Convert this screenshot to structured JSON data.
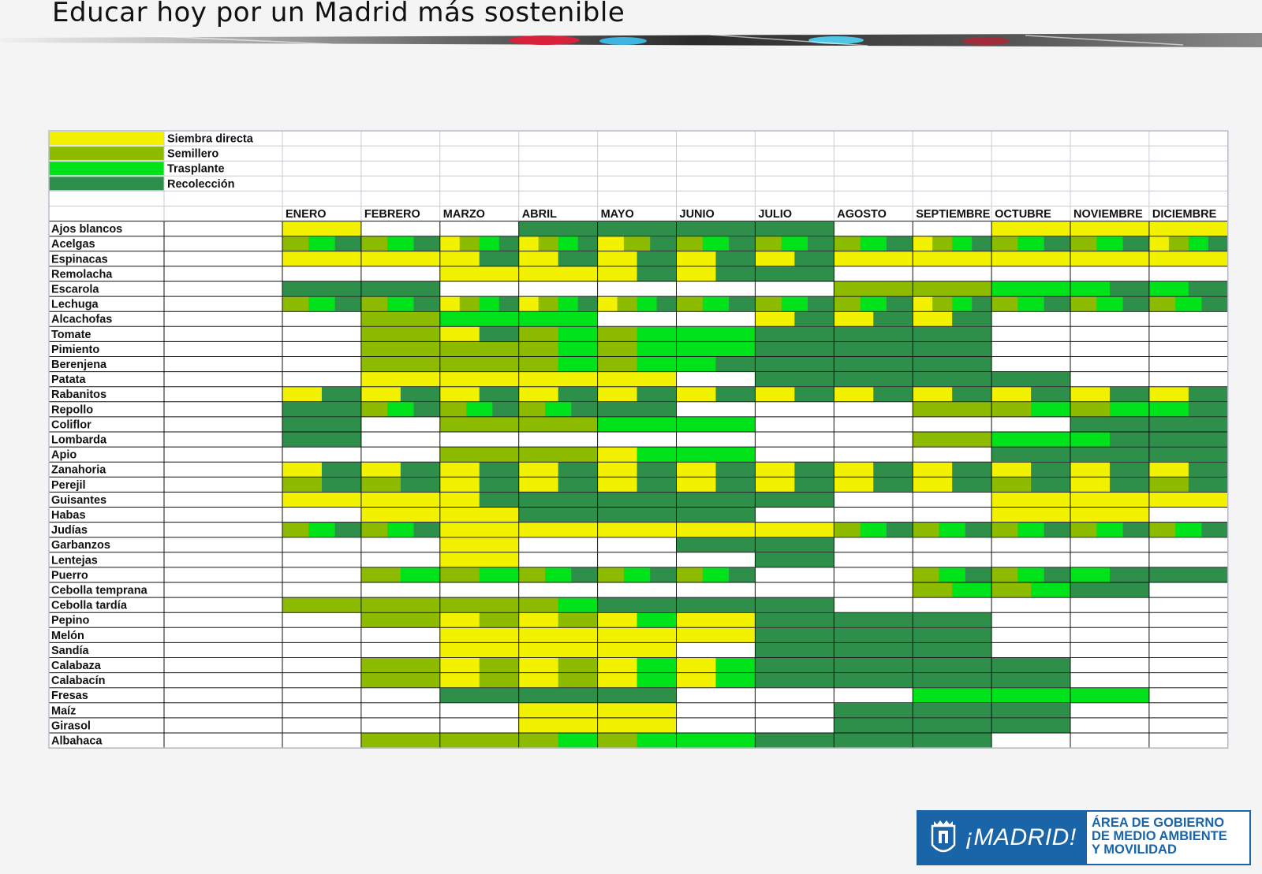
{
  "header": {
    "title": "Educar hoy por un Madrid más sostenible"
  },
  "footer": {
    "brand": "¡MADRID!",
    "dept_line1": "ÁREA DE GOBIERNO",
    "dept_line2": "DE MEDIO AMBIENTE",
    "dept_line3": "Y MOVILIDAD"
  },
  "colors": {
    "S": "#f2f200",
    "M": "#8dbb00",
    "T": "#00e31a",
    "R": "#2e8f4b",
    "E": "#ffffff"
  },
  "chart_data": {
    "type": "table",
    "title": "",
    "legend": [
      {
        "code": "S",
        "label": "Siembra directa"
      },
      {
        "code": "M",
        "label": "Semillero"
      },
      {
        "code": "T",
        "label": "Trasplante"
      },
      {
        "code": "R",
        "label": "Recolección"
      }
    ],
    "months": [
      "ENERO",
      "FEBRERO",
      "MARZO",
      "ABRIL",
      "MAYO",
      "JUNIO",
      "JULIO",
      "AGOSTO",
      "SEPTIEMBRE",
      "OCTUBRE",
      "NOVIEMBRE",
      "DICIEMBRE"
    ],
    "rows": [
      {
        "crop": "Ajos blancos",
        "months": [
          "S",
          "E",
          "E",
          "R",
          "R",
          "R",
          "R",
          "E",
          "E",
          "S",
          "S",
          "S"
        ]
      },
      {
        "crop": "Acelgas",
        "months": [
          "MTR",
          "MTR",
          "SMTR",
          "SMTR",
          "SMR",
          "MTR",
          "MTR",
          "MTR",
          "SMTR",
          "MTR",
          "MTR",
          "SMTR"
        ]
      },
      {
        "crop": "Espinacas",
        "months": [
          "S",
          "S",
          "SR",
          "SR",
          "SR",
          "SR",
          "SR",
          "S",
          "S",
          "S",
          "S",
          "S"
        ]
      },
      {
        "crop": "Remolacha",
        "months": [
          "E",
          "E",
          "S",
          "S",
          "SR",
          "SR",
          "R",
          "E",
          "E",
          "E",
          "E",
          "E"
        ]
      },
      {
        "crop": "Escarola",
        "months": [
          "R",
          "R",
          "E",
          "E",
          "E",
          "E",
          "E",
          "M",
          "M",
          "T",
          "TR",
          "TR"
        ]
      },
      {
        "crop": "Lechuga",
        "months": [
          "MTR",
          "MTR",
          "SMTR",
          "SMTR",
          "SMTR",
          "MTR",
          "MTR",
          "MTR",
          "SMTR",
          "MTR",
          "MTR",
          "MTR"
        ]
      },
      {
        "crop": "Alcachofas",
        "months": [
          "E",
          "M",
          "T",
          "T",
          "E",
          "E",
          "SR",
          "SR",
          "SR",
          "E",
          "E",
          "E"
        ]
      },
      {
        "crop": "Tomate",
        "months": [
          "E",
          "M",
          "SR",
          "MT",
          "MT",
          "T",
          "R",
          "R",
          "R",
          "E",
          "E",
          "E"
        ]
      },
      {
        "crop": "Pimiento",
        "months": [
          "E",
          "M",
          "M",
          "MT",
          "MT",
          "T",
          "R",
          "R",
          "R",
          "E",
          "E",
          "E"
        ]
      },
      {
        "crop": "Berenjena",
        "months": [
          "E",
          "M",
          "M",
          "MT",
          "MT",
          "TR",
          "R",
          "R",
          "R",
          "E",
          "E",
          "E"
        ]
      },
      {
        "crop": "Patata",
        "months": [
          "E",
          "S",
          "S",
          "S",
          "S",
          "E",
          "R",
          "R",
          "R",
          "R",
          "E",
          "E"
        ]
      },
      {
        "crop": "Rabanitos",
        "months": [
          "SR",
          "SR",
          "SR",
          "SR",
          "SR",
          "SR",
          "SR",
          "SR",
          "SR",
          "SR",
          "SR",
          "SR"
        ]
      },
      {
        "crop": "Repollo",
        "months": [
          "R",
          "MTR",
          "MTR",
          "MTR",
          "R",
          "E",
          "E",
          "E",
          "M",
          "MT",
          "MT",
          "TR"
        ]
      },
      {
        "crop": "Coliflor",
        "months": [
          "R",
          "E",
          "M",
          "M",
          "T",
          "T",
          "E",
          "E",
          "E",
          "E",
          "R",
          "R"
        ]
      },
      {
        "crop": "Lombarda",
        "months": [
          "R",
          "E",
          "E",
          "E",
          "E",
          "E",
          "E",
          "E",
          "M",
          "T",
          "TR",
          "R"
        ]
      },
      {
        "crop": "Apio",
        "months": [
          "E",
          "E",
          "M",
          "M",
          "ST",
          "T",
          "E",
          "E",
          "E",
          "R",
          "R",
          "R"
        ]
      },
      {
        "crop": "Zanahoria",
        "months": [
          "SR",
          "SR",
          "SR",
          "SR",
          "SR",
          "SR",
          "SR",
          "SR",
          "SR",
          "SR",
          "SR",
          "SR"
        ]
      },
      {
        "crop": "Perejil",
        "months": [
          "MR",
          "MR",
          "SR",
          "SR",
          "SR",
          "SR",
          "SR",
          "SR",
          "SR",
          "MR",
          "SR",
          "MR"
        ]
      },
      {
        "crop": "Guisantes",
        "months": [
          "S",
          "S",
          "SR",
          "R",
          "R",
          "R",
          "R",
          "E",
          "E",
          "S",
          "S",
          "S"
        ]
      },
      {
        "crop": "Habas",
        "months": [
          "E",
          "S",
          "S",
          "R",
          "R",
          "R",
          "E",
          "E",
          "E",
          "S",
          "S",
          "E"
        ]
      },
      {
        "crop": "Judías",
        "months": [
          "MTR",
          "MTR",
          "S",
          "S",
          "S",
          "S",
          "S",
          "MTR",
          "MTR",
          "MTR",
          "MTR",
          "MTR"
        ]
      },
      {
        "crop": "Garbanzos",
        "months": [
          "E",
          "E",
          "S",
          "E",
          "E",
          "R",
          "R",
          "E",
          "E",
          "E",
          "E",
          "E"
        ]
      },
      {
        "crop": "Lentejas",
        "months": [
          "E",
          "E",
          "S",
          "E",
          "E",
          "E",
          "R",
          "E",
          "E",
          "E",
          "E",
          "E"
        ]
      },
      {
        "crop": "Puerro",
        "months": [
          "E",
          "MT",
          "MT",
          "MTR",
          "MTR",
          "MTR",
          "E",
          "E",
          "MTR",
          "MTR",
          "TR",
          "R"
        ]
      },
      {
        "crop": "Cebolla temprana",
        "months": [
          "E",
          "E",
          "E",
          "E",
          "E",
          "E",
          "E",
          "E",
          "MT",
          "MT",
          "R",
          "E"
        ]
      },
      {
        "crop": "Cebolla tardía",
        "months": [
          "M",
          "M",
          "M",
          "MT",
          "R",
          "R",
          "R",
          "E",
          "E",
          "E",
          "E",
          "E"
        ]
      },
      {
        "crop": "Pepino",
        "months": [
          "E",
          "M",
          "SM",
          "SM",
          "ST",
          "S",
          "R",
          "R",
          "R",
          "E",
          "E",
          "E"
        ]
      },
      {
        "crop": "Melón",
        "months": [
          "E",
          "E",
          "S",
          "S",
          "S",
          "S",
          "R",
          "R",
          "R",
          "E",
          "E",
          "E"
        ]
      },
      {
        "crop": "Sandía",
        "months": [
          "E",
          "E",
          "S",
          "S",
          "S",
          "E",
          "R",
          "R",
          "R",
          "E",
          "E",
          "E"
        ]
      },
      {
        "crop": "Calabaza",
        "months": [
          "E",
          "M",
          "SM",
          "SM",
          "ST",
          "ST",
          "R",
          "R",
          "R",
          "R",
          "E",
          "E"
        ]
      },
      {
        "crop": "Calabacín",
        "months": [
          "E",
          "M",
          "SM",
          "SM",
          "ST",
          "ST",
          "R",
          "R",
          "R",
          "R",
          "E",
          "E"
        ]
      },
      {
        "crop": "Fresas",
        "months": [
          "E",
          "E",
          "R",
          "R",
          "R",
          "E",
          "E",
          "E",
          "T",
          "T",
          "T",
          "E"
        ]
      },
      {
        "crop": "Maíz",
        "months": [
          "E",
          "E",
          "E",
          "S",
          "S",
          "E",
          "E",
          "R",
          "R",
          "R",
          "E",
          "E"
        ]
      },
      {
        "crop": "Girasol",
        "months": [
          "E",
          "E",
          "E",
          "S",
          "S",
          "E",
          "E",
          "R",
          "R",
          "R",
          "E",
          "E"
        ]
      },
      {
        "crop": "Albahaca",
        "months": [
          "E",
          "M",
          "M",
          "MT",
          "MT",
          "T",
          "R",
          "R",
          "R",
          "E",
          "E",
          "E"
        ]
      }
    ]
  }
}
